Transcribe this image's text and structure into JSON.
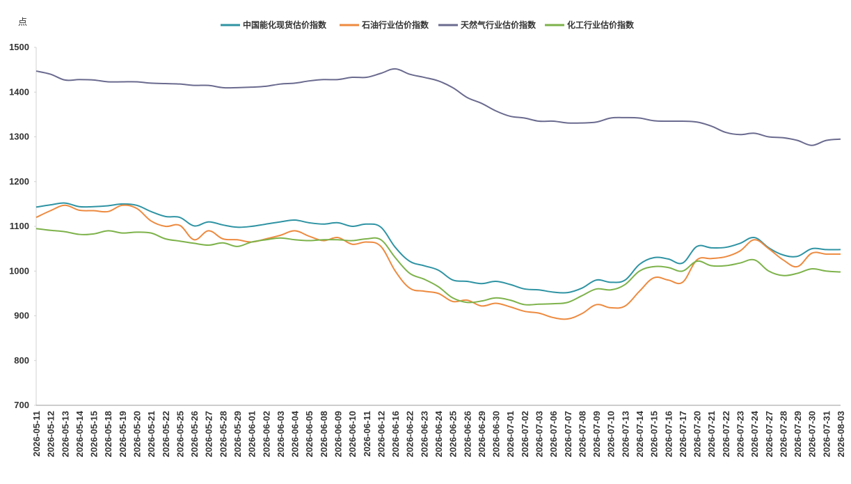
{
  "chart_data": {
    "type": "line",
    "y_label": "点",
    "categories": [
      "2026-05-11",
      "2026-05-12",
      "2026-05-13",
      "2026-05-14",
      "2026-05-15",
      "2026-05-18",
      "2026-05-19",
      "2026-05-20",
      "2026-05-21",
      "2026-05-22",
      "2026-05-25",
      "2026-05-26",
      "2026-05-27",
      "2026-05-28",
      "2026-05-29",
      "2026-06-01",
      "2026-06-02",
      "2026-06-03",
      "2026-06-04",
      "2026-06-05",
      "2026-06-08",
      "2026-06-09",
      "2026-06-10",
      "2026-06-11",
      "2026-06-12",
      "2026-06-16",
      "2026-06-22",
      "2026-06-23",
      "2026-06-24",
      "2026-06-25",
      "2026-06-26",
      "2026-06-29",
      "2026-06-30",
      "2026-07-01",
      "2026-07-02",
      "2026-07-03",
      "2026-07-06",
      "2026-07-07",
      "2026-07-08",
      "2026-07-09",
      "2026-07-10",
      "2026-07-13",
      "2026-07-14",
      "2026-07-15",
      "2026-07-16",
      "2026-07-17",
      "2026-07-20",
      "2026-07-21",
      "2026-07-22",
      "2026-07-23",
      "2026-07-24",
      "2026-07-27",
      "2026-07-28",
      "2026-07-29",
      "2026-07-30",
      "2026-07-31",
      "2026-08-03"
    ],
    "series": [
      {
        "name": "中国能化现货估价指数",
        "color": "#2e93a3",
        "values": [
          1143,
          1148,
          1152,
          1144,
          1144,
          1146,
          1150,
          1147,
          1133,
          1122,
          1120,
          1101,
          1110,
          1103,
          1098,
          1100,
          1105,
          1110,
          1114,
          1108,
          1105,
          1108,
          1100,
          1105,
          1098,
          1053,
          1022,
          1012,
          1002,
          980,
          977,
          972,
          977,
          970,
          960,
          958,
          953,
          952,
          962,
          980,
          975,
          980,
          1015,
          1030,
          1027,
          1018,
          1055,
          1052,
          1053,
          1062,
          1075,
          1052,
          1036,
          1033,
          1050,
          1048,
          1048
        ]
      },
      {
        "name": "石油行业估价指数",
        "color": "#ed8a3f",
        "values": [
          1120,
          1135,
          1147,
          1136,
          1135,
          1133,
          1147,
          1140,
          1112,
          1100,
          1102,
          1070,
          1090,
          1072,
          1070,
          1065,
          1072,
          1080,
          1090,
          1078,
          1068,
          1075,
          1060,
          1065,
          1055,
          1000,
          962,
          955,
          950,
          932,
          935,
          922,
          928,
          920,
          910,
          906,
          896,
          893,
          905,
          925,
          918,
          922,
          955,
          985,
          980,
          975,
          1025,
          1028,
          1032,
          1045,
          1070,
          1050,
          1025,
          1010,
          1040,
          1038,
          1038
        ]
      },
      {
        "name": "天然气行业估价指数",
        "color": "#6a6a8f",
        "values": [
          1447,
          1440,
          1427,
          1428,
          1427,
          1423,
          1423,
          1423,
          1420,
          1419,
          1418,
          1415,
          1415,
          1410,
          1410,
          1411,
          1413,
          1418,
          1420,
          1425,
          1428,
          1428,
          1433,
          1433,
          1442,
          1452,
          1440,
          1433,
          1425,
          1410,
          1388,
          1375,
          1358,
          1346,
          1342,
          1335,
          1335,
          1331,
          1331,
          1333,
          1342,
          1343,
          1342,
          1336,
          1335,
          1335,
          1333,
          1324,
          1310,
          1305,
          1308,
          1300,
          1298,
          1292,
          1281,
          1292,
          1295
        ]
      },
      {
        "name": "化工行业估价指数",
        "color": "#7db24a",
        "values": [
          1095,
          1091,
          1088,
          1082,
          1083,
          1090,
          1085,
          1087,
          1085,
          1072,
          1067,
          1062,
          1058,
          1063,
          1055,
          1065,
          1070,
          1074,
          1070,
          1068,
          1070,
          1070,
          1068,
          1072,
          1070,
          1030,
          995,
          982,
          965,
          940,
          930,
          933,
          940,
          935,
          925,
          926,
          927,
          930,
          945,
          960,
          958,
          970,
          1000,
          1010,
          1008,
          1000,
          1022,
          1012,
          1012,
          1018,
          1025,
          1000,
          990,
          995,
          1005,
          1000,
          998
        ]
      }
    ],
    "ylim": [
      700,
      1500
    ],
    "yticks": [
      700,
      800,
      900,
      1000,
      1100,
      1200,
      1300,
      1400,
      1500
    ],
    "grid": false
  }
}
